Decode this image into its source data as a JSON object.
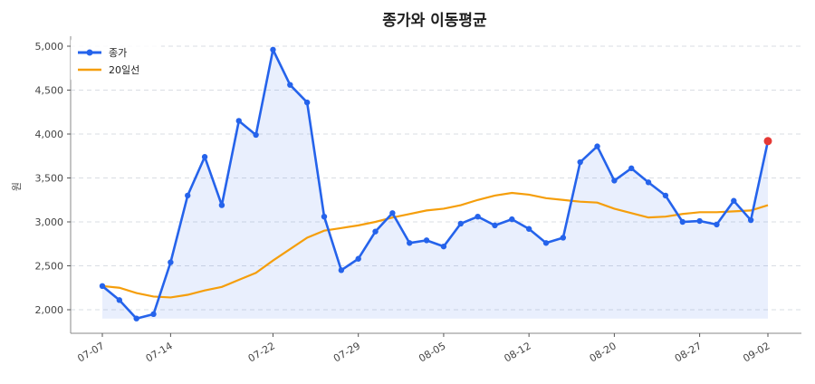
{
  "chart_data": {
    "type": "line",
    "title": "종가와 이동평균",
    "ylabel": "원",
    "xlabel": "",
    "ylim": [
      1800,
      5100
    ],
    "yticks": [
      2000,
      2500,
      3000,
      3500,
      4000,
      4500,
      5000
    ],
    "ytick_labels": [
      "2,000",
      "2,500",
      "3,000",
      "3,500",
      "4,000",
      "4,500",
      "5,000"
    ],
    "xtick_labels": [
      "07-07",
      "07-14",
      "07-22",
      "07-29",
      "08-05",
      "08-12",
      "08-20",
      "08-27",
      "09-02"
    ],
    "xtick_indices": [
      0,
      4,
      10,
      15,
      20,
      25,
      30,
      35,
      39
    ],
    "grid": "horizontal dashed",
    "legend_position": "top-left",
    "series": [
      {
        "name": "종가",
        "color": "#2563eb",
        "marker": "circle",
        "fill_area": true,
        "highlight_last_color": "#e53935",
        "values": [
          2270,
          2110,
          1900,
          1950,
          2540,
          3300,
          3740,
          3190,
          4150,
          3990,
          4960,
          4560,
          4360,
          3060,
          2450,
          2580,
          2890,
          3100,
          2760,
          2790,
          2720,
          2980,
          3060,
          2960,
          3030,
          2920,
          2760,
          2820,
          3680,
          3860,
          3470,
          3610,
          3450,
          3300,
          3000,
          3010,
          2970,
          3240,
          3020,
          3920
        ]
      },
      {
        "name": "20일선",
        "color": "#f59e0b",
        "marker": "none",
        "values": [
          2270,
          2250,
          2190,
          2150,
          2140,
          2170,
          2220,
          2260,
          2340,
          2420,
          2560,
          2690,
          2820,
          2900,
          2930,
          2960,
          3000,
          3050,
          3090,
          3130,
          3150,
          3190,
          3250,
          3300,
          3330,
          3310,
          3270,
          3250,
          3230,
          3220,
          3150,
          3100,
          3050,
          3060,
          3090,
          3110,
          3110,
          3120,
          3130,
          3190
        ]
      }
    ]
  }
}
